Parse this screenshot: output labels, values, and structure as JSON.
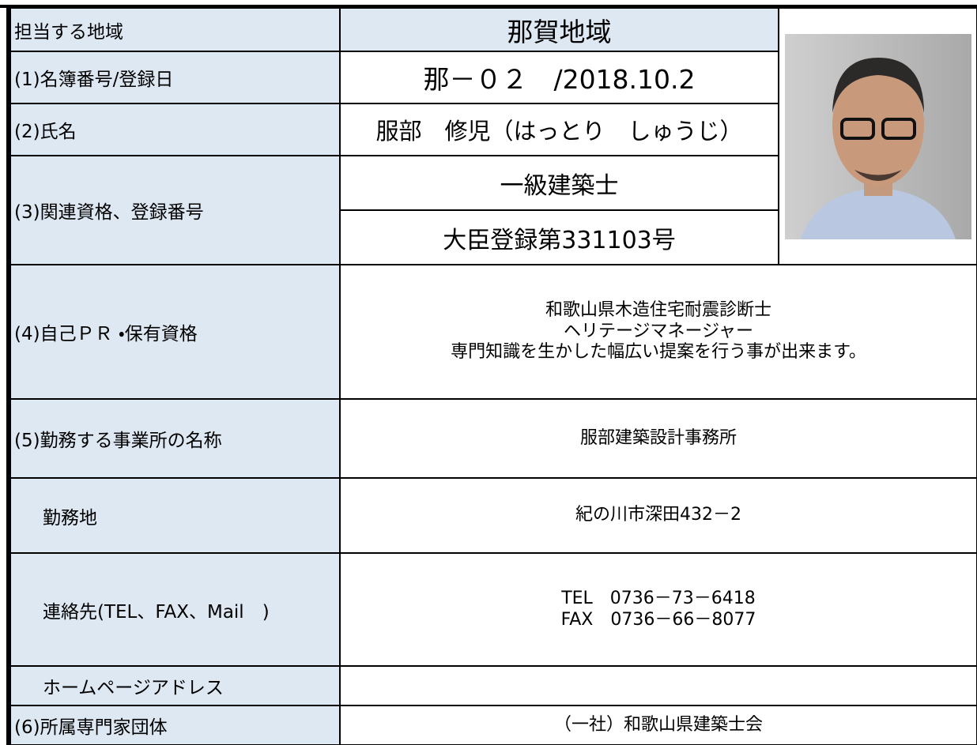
{
  "rows": [
    {
      "label": "担当する地域",
      "value": "那賀地域"
    },
    {
      "label": "(1)名簿番号/登録日",
      "value": "那－０２　/2018.10.2"
    },
    {
      "label": "(2)氏名",
      "value": "服部　修児（はっとり　しゅうじ）"
    },
    {
      "label": "(3)関連資格、登録番号",
      "values": [
        "一級建築士",
        "大臣登録第331103号"
      ]
    },
    {
      "label": "(4)自己ＰＲ ・保有資格",
      "lines": [
        "和歌山県木造住宅耐震診断士",
        "ヘリテージマネージャー",
        "専門知識を生かした幅広い提案を行う事が出来ます。"
      ]
    },
    {
      "label": "(5)勤務する事業所の名称",
      "value": "服部建築設計事務所"
    },
    {
      "label": "勤務地",
      "value": "紀の川市深田432－2"
    },
    {
      "label": "連絡先(TEL、FAX、Mail　)",
      "lines": [
        "TEL　0736－73－6418",
        "FAX　0736－66－8077"
      ]
    },
    {
      "label": "ホームページアドレス"
    },
    {
      "label": "(6)所属専門家団体",
      "value": "（一社）和歌山県建築士会"
    }
  ]
}
